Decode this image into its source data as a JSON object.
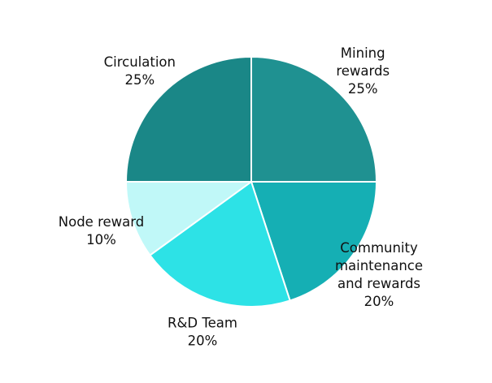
{
  "chart_data": {
    "type": "pie",
    "title": "",
    "start": "12 o'clock",
    "direction": "clockwise",
    "slices": [
      {
        "label": [
          "Mining",
          "rewards"
        ],
        "pct_label": "25%",
        "value": 25,
        "color": "#1f9191"
      },
      {
        "label": [
          "Community",
          "maintenance",
          "and rewards"
        ],
        "pct_label": "20%",
        "value": 20,
        "color": "#15afb4"
      },
      {
        "label": [
          "R&D Team"
        ],
        "pct_label": "20%",
        "value": 20,
        "color": "#2de2e6"
      },
      {
        "label": [
          "Node reward"
        ],
        "pct_label": "10%",
        "value": 10,
        "color": "#c0f8f8"
      },
      {
        "label": [
          "Circulation"
        ],
        "pct_label": "25%",
        "value": 25,
        "color": "#1a8787"
      }
    ]
  }
}
